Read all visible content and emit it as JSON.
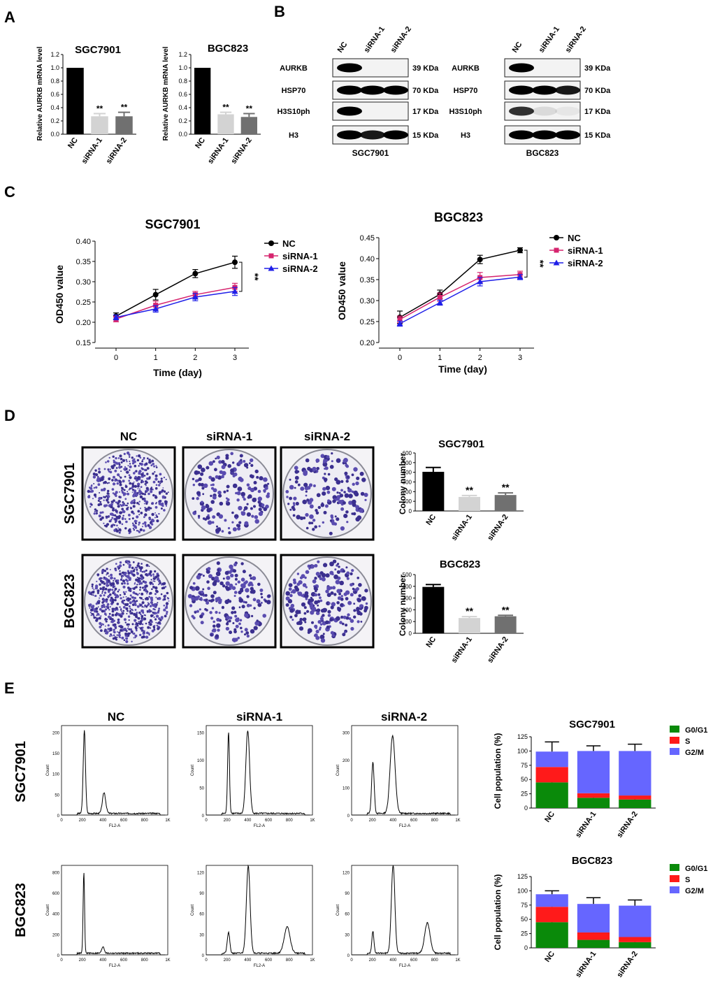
{
  "panels": {
    "A": {
      "label": "A",
      "ylabel": "Relative AURKB mRNA level",
      "charts": [
        {
          "title": "SGC7901",
          "categories": [
            "NC",
            "siRNA-1",
            "siRNA-2"
          ],
          "values": [
            1.0,
            0.27,
            0.27
          ],
          "errors": [
            0,
            0.04,
            0.06
          ],
          "sig": [
            "",
            "**",
            "**"
          ],
          "colors": [
            "#000000",
            "#d3d3d3",
            "#707070"
          ],
          "yticks": [
            "0.0",
            "0.2",
            "0.4",
            "0.6",
            "0.8",
            "1.0",
            "1.2"
          ]
        },
        {
          "title": "BGC823",
          "categories": [
            "NC",
            "siRNA-1",
            "siRNA-2"
          ],
          "values": [
            1.0,
            0.3,
            0.26
          ],
          "errors": [
            0,
            0.03,
            0.05
          ],
          "sig": [
            "",
            "**",
            "**"
          ],
          "colors": [
            "#000000",
            "#d3d3d3",
            "#707070"
          ],
          "yticks": [
            "0.0",
            "0.2",
            "0.4",
            "0.6",
            "0.8",
            "1.0",
            "1.2"
          ]
        }
      ]
    },
    "B": {
      "label": "B",
      "lanes": [
        "NC",
        "siRNA-1",
        "siRNA-2"
      ],
      "blots": [
        {
          "cell": "SGC7901",
          "rows": [
            {
              "protein": "AURKB",
              "size": "39 KDa",
              "intensity": [
                1,
                0,
                0
              ]
            },
            {
              "protein": "HSP70",
              "size": "70 KDa",
              "intensity": [
                1,
                1,
                1
              ]
            },
            {
              "protein": "H3S10ph",
              "size": "17 KDa",
              "intensity": [
                1,
                0,
                0
              ]
            },
            {
              "protein": "H3",
              "size": "15 KDa",
              "intensity": [
                1,
                0.9,
                1
              ]
            }
          ]
        },
        {
          "cell": "BGC823",
          "rows": [
            {
              "protein": "AURKB",
              "size": "39 KDa",
              "intensity": [
                1,
                0,
                0
              ]
            },
            {
              "protein": "HSP70",
              "size": "70 KDa",
              "intensity": [
                1,
                1,
                0.9
              ]
            },
            {
              "protein": "H3S10ph",
              "size": "17 KDa",
              "intensity": [
                0.8,
                0.1,
                0.05
              ]
            },
            {
              "protein": "H3",
              "size": "15 KDa",
              "intensity": [
                1,
                1,
                1
              ]
            }
          ]
        }
      ]
    },
    "C": {
      "label": "C",
      "xlabel": "Time (day)",
      "ylabel": "OD450 value",
      "legend": [
        "NC",
        "siRNA-1",
        "siRNA-2"
      ],
      "sig": "**",
      "colors": [
        "#000000",
        "#d6246e",
        "#1f1fe8"
      ],
      "charts": [
        {
          "title": "SGC7901",
          "x": [
            0,
            1,
            2,
            3
          ],
          "yticks": [
            "0.15",
            "0.20",
            "0.25",
            "0.30",
            "0.35",
            "0.40"
          ],
          "series": [
            {
              "name": "NC",
              "values": [
                0.215,
                0.268,
                0.32,
                0.348
              ],
              "errors": [
                0.008,
                0.013,
                0.01,
                0.015
              ]
            },
            {
              "name": "siRNA-1",
              "values": [
                0.208,
                0.242,
                0.268,
                0.286
              ],
              "errors": [
                0.007,
                0.01,
                0.008,
                0.01
              ]
            },
            {
              "name": "siRNA-2",
              "values": [
                0.212,
                0.233,
                0.262,
                0.276
              ],
              "errors": [
                0.006,
                0.008,
                0.009,
                0.01
              ]
            }
          ]
        },
        {
          "title": "BGC823",
          "x": [
            0,
            1,
            2,
            3
          ],
          "yticks": [
            "0.20",
            "0.25",
            "0.30",
            "0.35",
            "0.40",
            "0.45"
          ],
          "series": [
            {
              "name": "NC",
              "values": [
                0.26,
                0.315,
                0.398,
                0.42
              ],
              "errors": [
                0.015,
                0.01,
                0.01,
                0.006
              ]
            },
            {
              "name": "siRNA-1",
              "values": [
                0.255,
                0.308,
                0.355,
                0.362
              ],
              "errors": [
                0.008,
                0.01,
                0.012,
                0.008
              ]
            },
            {
              "name": "siRNA-2",
              "values": [
                0.245,
                0.295,
                0.345,
                0.356
              ],
              "errors": [
                0.006,
                0.006,
                0.01,
                0.006
              ]
            }
          ]
        }
      ]
    },
    "D": {
      "label": "D",
      "columns": [
        "NC",
        "siRNA-1",
        "siRNA-2"
      ],
      "rows": [
        "SGC7901",
        "BGC823"
      ],
      "density": [
        [
          520,
          180,
          170
        ],
        [
          700,
          210,
          240
        ]
      ],
      "ylabel": "Colony number",
      "charts": [
        {
          "title": "SGC7901",
          "categories": [
            "NC",
            "siRNA-1",
            "siRNA-2"
          ],
          "values": [
            405,
            145,
            165
          ],
          "errors": [
            45,
            15,
            22
          ],
          "sig": [
            "",
            "**",
            "**"
          ],
          "colors": [
            "#000000",
            "#d3d3d3",
            "#707070"
          ],
          "yticks": [
            "0",
            "100",
            "200",
            "300",
            "400",
            "500",
            "600"
          ]
        },
        {
          "title": "BGC823",
          "categories": [
            "NC",
            "siRNA-1",
            "siRNA-2"
          ],
          "values": [
            395,
            130,
            145
          ],
          "errors": [
            20,
            12,
            8
          ],
          "sig": [
            "",
            "**",
            "**"
          ],
          "colors": [
            "#000000",
            "#d3d3d3",
            "#707070"
          ],
          "yticks": [
            "0",
            "100",
            "200",
            "300",
            "400",
            "500"
          ]
        }
      ]
    },
    "E": {
      "label": "E",
      "columns": [
        "NC",
        "siRNA-1",
        "siRNA-2"
      ],
      "rows": [
        "SGC7901",
        "BGC823"
      ],
      "flow_xlabel": "FL2-A",
      "flow_ylabel": "Count",
      "flow_xticks": [
        "0",
        "200",
        "400",
        "600",
        "800",
        "1K"
      ],
      "flow": [
        [
          {
            "yticks": [
              "0",
              "50",
              "100",
              "150",
              "200"
            ],
            "ymax": 200,
            "peaks": [
              [
                220,
                200,
                11
              ],
              [
                410,
                50,
                16
              ]
            ]
          },
          {
            "yticks": [
              "0",
              "50",
              "100",
              "150"
            ],
            "ymax": 150,
            "peaks": [
              [
                215,
                148,
                9
              ],
              [
                400,
                150,
                18
              ]
            ]
          },
          {
            "yticks": [
              "0",
              "100",
              "200",
              "300"
            ],
            "ymax": 300,
            "peaks": [
              [
                205,
                185,
                12
              ],
              [
                395,
                280,
                24
              ]
            ]
          }
        ],
        [
          {
            "yticks": [
              "0",
              "200",
              "400",
              "600",
              "800"
            ],
            "ymax": 800,
            "peaks": [
              [
                215,
                780,
                7
              ],
              [
                400,
                65,
                12
              ]
            ]
          },
          {
            "yticks": [
              "0",
              "30",
              "60",
              "90",
              "120"
            ],
            "ymax": 120,
            "peaks": [
              [
                215,
                30,
                12
              ],
              [
                405,
                126,
                18
              ],
              [
                780,
                38,
                28
              ]
            ]
          },
          {
            "yticks": [
              "0",
              "30",
              "60",
              "90",
              "120"
            ],
            "ymax": 120,
            "peaks": [
              [
                205,
                32,
                10
              ],
              [
                400,
                128,
                17
              ],
              [
                730,
                44,
                26
              ]
            ]
          }
        ]
      ],
      "ylabel": "Cell population (%)",
      "phase_legend": [
        "G0/G1",
        "S",
        "G2/M"
      ],
      "phase_colors": [
        "#0a8a0a",
        "#ff1a1a",
        "#6666ff"
      ],
      "charts": [
        {
          "title": "SGC7901",
          "categories": [
            "NC",
            "siRNA-1",
            "siRNA-2"
          ],
          "stacks": [
            [
              45,
              27,
              27
            ],
            [
              18,
              8,
              74
            ],
            [
              15,
              7,
              78
            ]
          ],
          "errors": [
            [
              14,
              0,
              17
            ],
            [
              4,
              0,
              9
            ],
            [
              4,
              0,
              12
            ]
          ],
          "yticks": [
            "0",
            "25",
            "50",
            "75",
            "100",
            "125"
          ]
        },
        {
          "title": "BGC823",
          "categories": [
            "NC",
            "siRNA-1",
            "siRNA-2"
          ],
          "stacks": [
            [
              45,
              27,
              22
            ],
            [
              14,
              13,
              50
            ],
            [
              10,
              9,
              55
            ]
          ],
          "errors": [
            [
              8,
              4,
              6
            ],
            [
              3,
              3,
              11
            ],
            [
              3,
              3,
              10
            ]
          ],
          "yticks": [
            "0",
            "25",
            "50",
            "75",
            "100",
            "125"
          ]
        }
      ]
    }
  }
}
